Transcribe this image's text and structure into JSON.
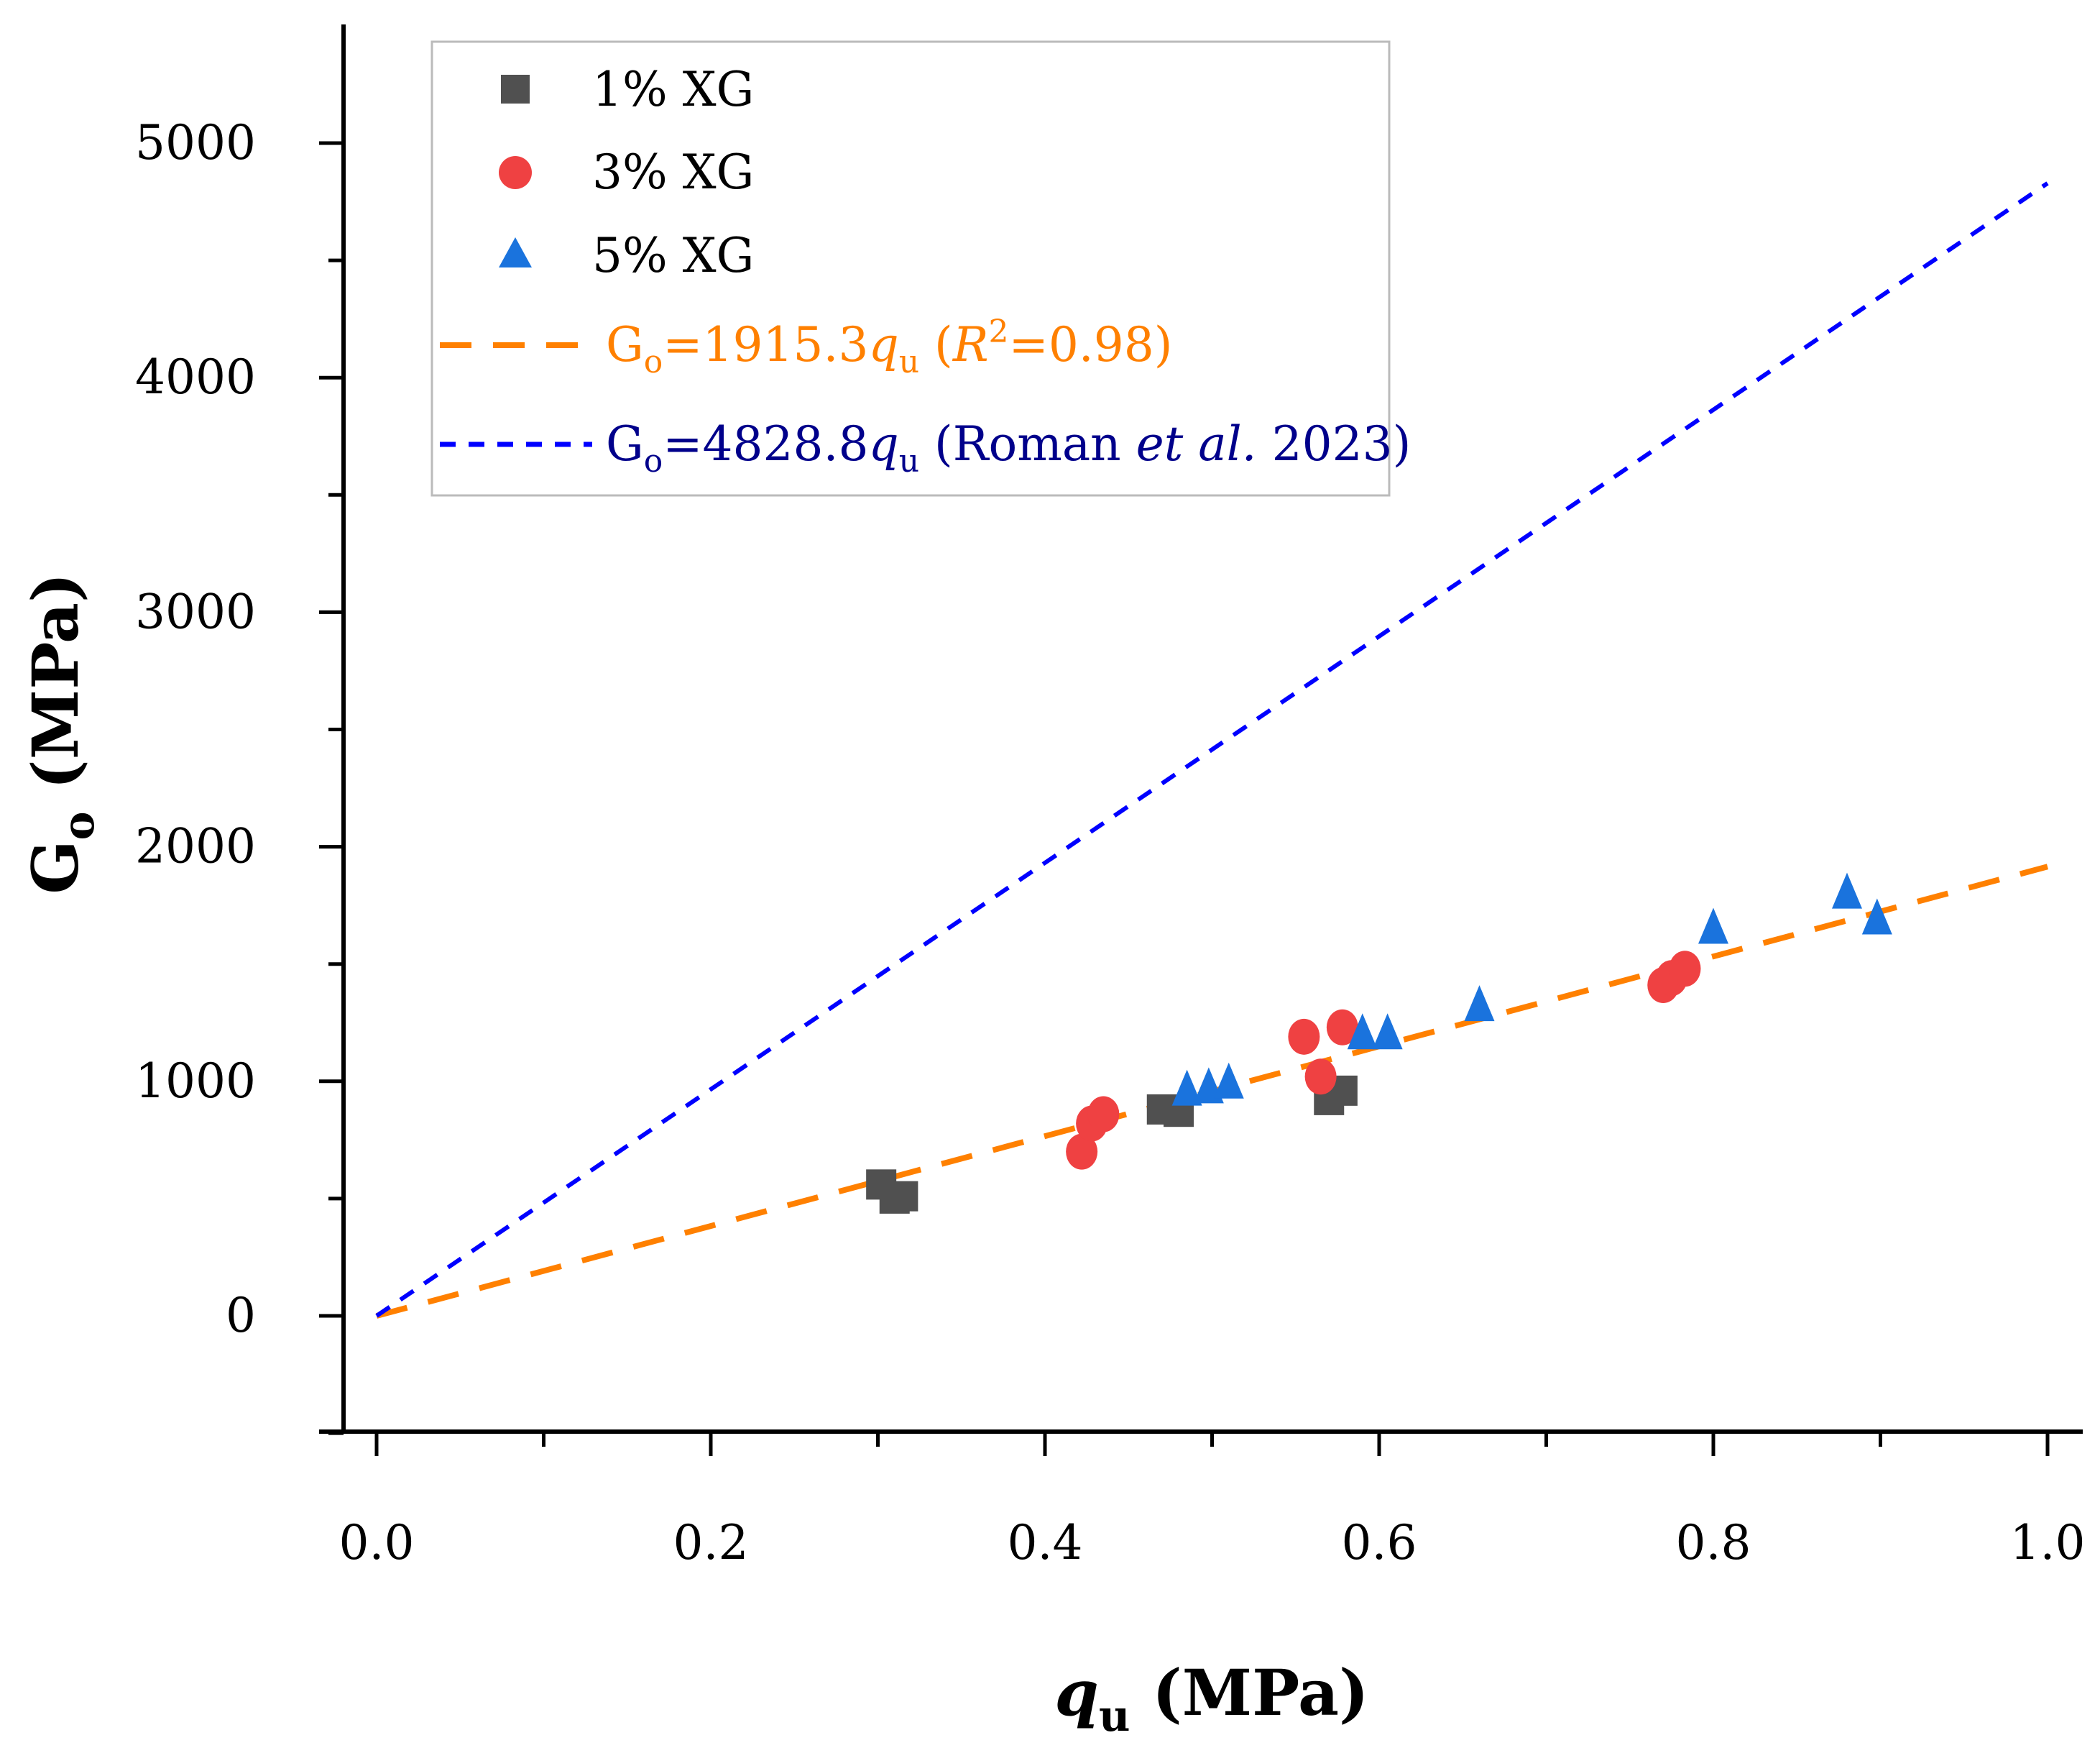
{
  "chart_data": {
    "type": "scatter",
    "xlabel": "q",
    "xlabel_sub": "u",
    "xlabel_unit": " (MPa)",
    "ylabel": "G",
    "ylabel_sub": "o",
    "ylabel_unit": " (MPa)",
    "xlim": [
      -0.02,
      1.02
    ],
    "ylim": [
      -500,
      5500
    ],
    "xticks": [
      0.0,
      0.2,
      0.4,
      0.6,
      0.8,
      1.0
    ],
    "xtick_labels": [
      "0.0",
      "0.2",
      "0.4",
      "0.6",
      "0.8",
      "1.0"
    ],
    "xminor": [
      0.1,
      0.3,
      0.5,
      0.7,
      0.9
    ],
    "yticks": [
      0,
      1000,
      2000,
      3000,
      4000,
      5000
    ],
    "ytick_labels": [
      "0",
      "1000",
      "2000",
      "3000",
      "4000",
      "5000"
    ],
    "yminor": [
      -500,
      500,
      1500,
      2500,
      3500,
      4500
    ],
    "legend_position": "top-left",
    "series": [
      {
        "name": "1% XG",
        "marker": "square",
        "color": "#505050",
        "x": [
          0.302,
          0.31,
          0.315,
          0.47,
          0.48,
          0.57,
          0.578
        ],
        "y": [
          560,
          500,
          510,
          880,
          870,
          920,
          960
        ]
      },
      {
        "name": "3% XG",
        "marker": "circle",
        "color": "#ef4142",
        "x": [
          0.422,
          0.428,
          0.435,
          0.555,
          0.565,
          0.578,
          0.77,
          0.775,
          0.783
        ],
        "y": [
          700,
          820,
          860,
          1190,
          1020,
          1230,
          1410,
          1440,
          1480
        ]
      },
      {
        "name": "5% XG",
        "marker": "triangle",
        "color": "#1a73dd",
        "x": [
          0.485,
          0.498,
          0.51,
          0.59,
          0.605,
          0.66,
          0.8,
          0.88,
          0.898
        ],
        "y": [
          970,
          980,
          1000,
          1210,
          1210,
          1330,
          1660,
          1810,
          1700
        ]
      }
    ],
    "lines": [
      {
        "name": "fit",
        "slope": 1915.3,
        "color": "#ff8000",
        "dash": "long",
        "label_pre": "G",
        "label_sub": "o",
        "label_eq": "=1915.3",
        "label_q": "q",
        "label_qsub": "u",
        "label_r_open": " (",
        "label_r": "R",
        "label_r_sup": "2",
        "label_r_close": "=0.98)"
      },
      {
        "name": "Roman",
        "slope": 4828.8,
        "color": "#0000ff",
        "dash": "short",
        "label_pre": "G",
        "label_sub": "o",
        "label_eq": "=4828.8",
        "label_q": "q",
        "label_qsub": "u",
        "label_ref1": " (Roman ",
        "label_ref_it": "et al.",
        "label_ref2": " 2023)",
        "text_color": "#00008b"
      }
    ]
  }
}
